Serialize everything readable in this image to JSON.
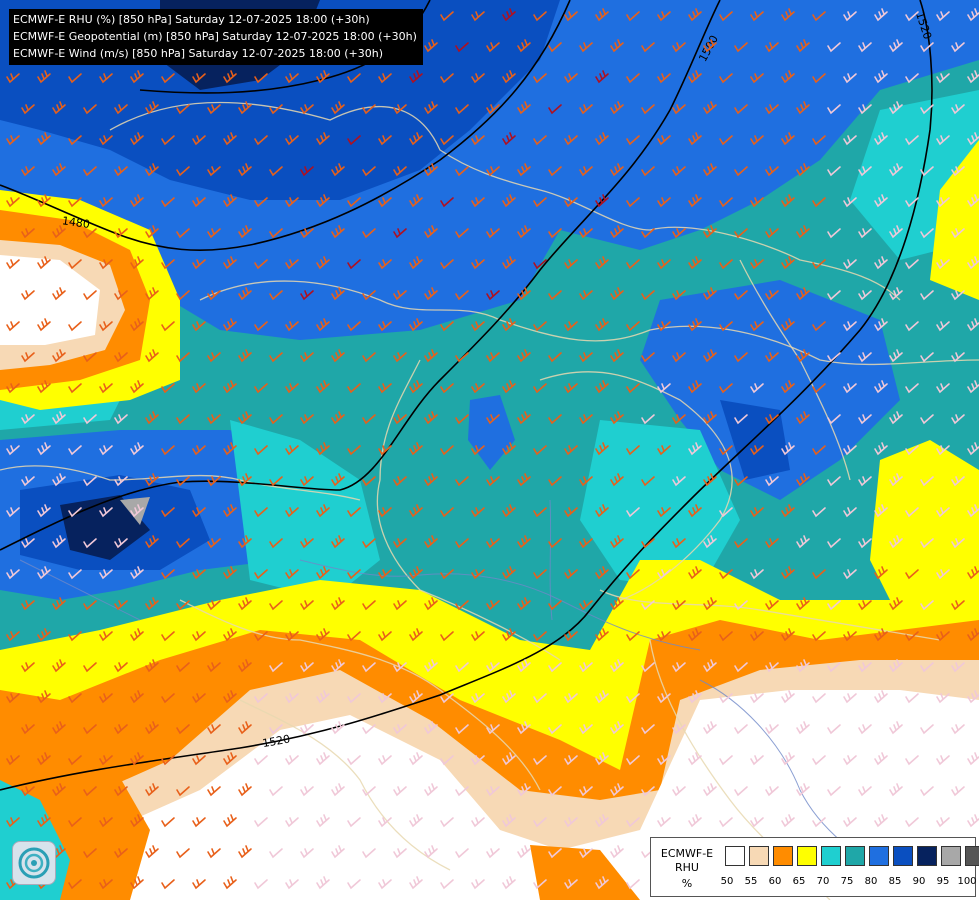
{
  "titles": [
    "ECMWF-E RHU (%) [850 hPa] Saturday 12-07-2025 18:00 (+30h)",
    "ECMWF-E Geopotential (m) [850 hPa] Saturday 12-07-2025 18:00 (+30h)",
    "ECMWF-E Wind (m/s) [850 hPa] Saturday 12-07-2025 18:00 (+30h)"
  ],
  "contour_labels": [
    "1480",
    "1500",
    "1520",
    "1520"
  ],
  "legend": {
    "name_line1": "ECMWF-E",
    "name_line2": "RHU",
    "unit": "%",
    "ticks": [
      "50",
      "55",
      "60",
      "65",
      "70",
      "75",
      "80",
      "85",
      "90",
      "95",
      "100"
    ],
    "colors": [
      "#ffffff",
      "#f7d9b5",
      "#ff8c00",
      "#ffff00",
      "#1fcfd0",
      "#1fa7a8",
      "#1f6fe0",
      "#0a4fc0",
      "#06225e",
      "#a8a8a8",
      "#555555"
    ]
  },
  "colors": {
    "contour": "#000000",
    "border": "#e8d8b0",
    "river": "#6f88c8",
    "barb_strong": "#e8601a",
    "barb_light": "#f0c8d8",
    "barb_max": "#b01020"
  },
  "logo_icon": "ecmwf-swirl-icon"
}
